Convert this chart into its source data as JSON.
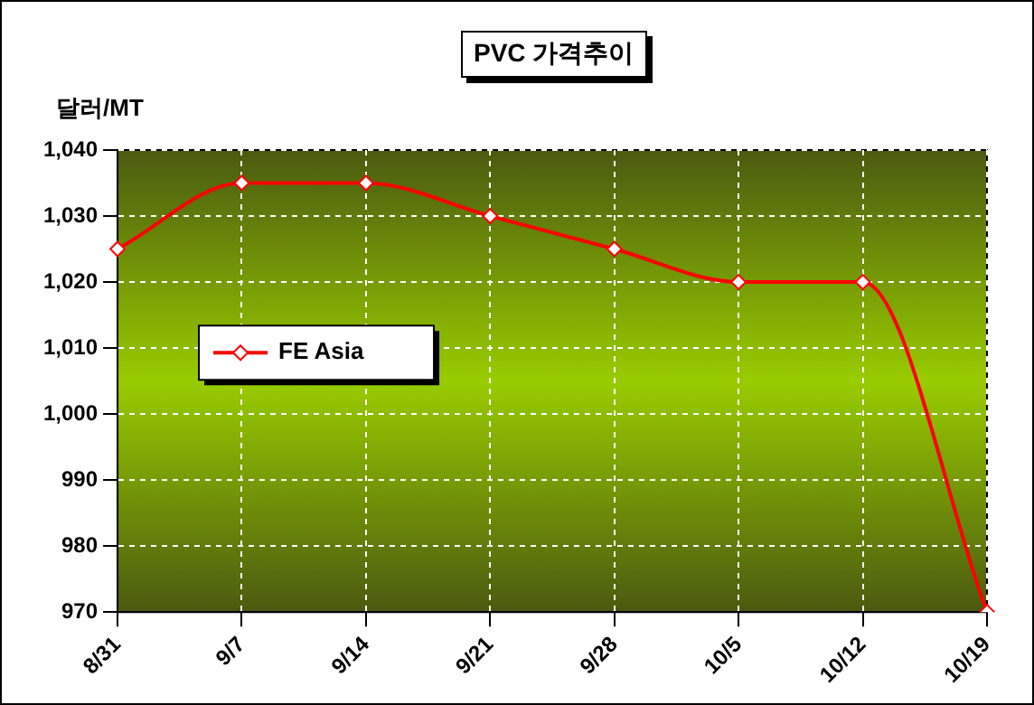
{
  "chart_data": {
    "type": "line",
    "title": "PVC 가격추이",
    "ylabel": "달러/MT",
    "categories": [
      "8/31",
      "9/7",
      "9/14",
      "9/21",
      "9/28",
      "10/5",
      "10/12",
      "10/19"
    ],
    "series": [
      {
        "name": "FE Asia",
        "color": "#ff0000",
        "values": [
          1025,
          1035,
          1035,
          1030,
          1025,
          1020,
          1020,
          970
        ]
      }
    ],
    "ylim": [
      970,
      1040
    ],
    "yticks": [
      970,
      980,
      990,
      {
        "value": 1000,
        "label": "1,000"
      },
      {
        "value": 1010,
        "label": "1,010"
      },
      {
        "value": 1020,
        "label": "1,020"
      },
      {
        "value": 1030,
        "label": "1,030"
      },
      {
        "value": 1040,
        "label": "1,040"
      }
    ],
    "grid": true,
    "legend": "left",
    "marker": "diamond",
    "line_style": "solid"
  }
}
